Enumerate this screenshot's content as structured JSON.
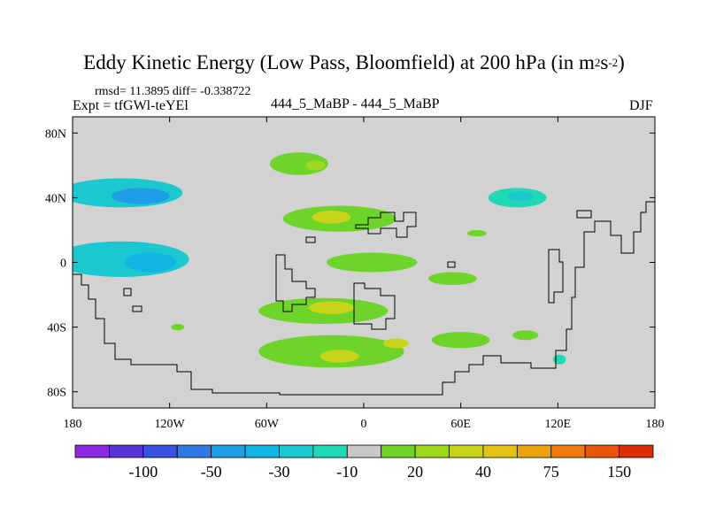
{
  "chart_data": {
    "type": "heatmap",
    "title": "Eddy Kinetic Energy (Low Pass, Bloomfield) at 200 hPa (in m",
    "title_unit_sup1": "2",
    "title_unit_mid": "s",
    "title_unit_sup2": "-2",
    "title_close": ")",
    "stats": "rmsd= 11.3895 diff= -0.338722",
    "expt": "Expt = tfGWl-teYEl",
    "center_label": "444_5_MaBP - 444_5_MaBP",
    "season": "DJF",
    "x_range": [
      -180,
      180
    ],
    "y_range": [
      -90,
      90
    ],
    "x_ticks": [
      {
        "v": -180,
        "label": "180"
      },
      {
        "v": -120,
        "label": "120W"
      },
      {
        "v": -60,
        "label": "60W"
      },
      {
        "v": 0,
        "label": "0"
      },
      {
        "v": 60,
        "label": "60E"
      },
      {
        "v": 120,
        "label": "120E"
      },
      {
        "v": 180,
        "label": "180"
      }
    ],
    "y_ticks": [
      {
        "v": 80,
        "label": "80N"
      },
      {
        "v": 40,
        "label": "40N"
      },
      {
        "v": 0,
        "label": "0"
      },
      {
        "v": -40,
        "label": "40S"
      },
      {
        "v": -80,
        "label": "80S"
      }
    ],
    "colorbar": {
      "colors": [
        "#8a2be2",
        "#5a32d8",
        "#3a52e2",
        "#2e7be6",
        "#1f9ee8",
        "#12b4e3",
        "#1cc8d0",
        "#20d8b4",
        "#c8c8c8",
        "#6ed42a",
        "#9ed81e",
        "#c8d41a",
        "#e2c214",
        "#eca40e",
        "#ee7a0c",
        "#e85408",
        "#dc2e04"
      ],
      "labels": [
        {
          "after_index": 1,
          "text": "-100"
        },
        {
          "after_index": 3,
          "text": "-50"
        },
        {
          "after_index": 5,
          "text": "-30"
        },
        {
          "after_index": 7,
          "text": "-10"
        },
        {
          "after_index": 9,
          "text": "20"
        },
        {
          "after_index": 11,
          "text": "40"
        },
        {
          "after_index": 13,
          "text": "75"
        },
        {
          "after_index": 15,
          "text": "150"
        }
      ]
    },
    "background_color": "#d2d2d2",
    "anomaly_regions": [
      {
        "name": "nh-pacific-neg",
        "lon": -150,
        "lat": 43,
        "rlon": 38,
        "rlat": 9,
        "level": -25
      },
      {
        "name": "nh-pacific-neg-core",
        "lon": -138,
        "lat": 41,
        "rlon": 18,
        "rlat": 5,
        "level": -40
      },
      {
        "name": "trop-pacific-neg",
        "lon": -150,
        "lat": 2,
        "rlon": 42,
        "rlat": 11,
        "level": -20
      },
      {
        "name": "trop-pacific-neg-core",
        "lon": -132,
        "lat": 0,
        "rlon": 16,
        "rlat": 6,
        "level": -35
      },
      {
        "name": "nh-europe-neg",
        "lon": 95,
        "lat": 40,
        "rlon": 18,
        "rlat": 6,
        "level": -15
      },
      {
        "name": "nh-europe-neg-core",
        "lon": 97,
        "lat": 41,
        "rlon": 8,
        "rlat": 3,
        "level": -28
      },
      {
        "name": "nh-atlantic-pos-north",
        "lon": -40,
        "lat": 61,
        "rlon": 18,
        "rlat": 7,
        "level": 15
      },
      {
        "name": "nh-atlantic-pos-north-core",
        "lon": -30,
        "lat": 60,
        "rlon": 6,
        "rlat": 3,
        "level": 28
      },
      {
        "name": "nh-atlantic-pos",
        "lon": -15,
        "lat": 27,
        "rlon": 35,
        "rlat": 8,
        "level": 18
      },
      {
        "name": "nh-atlantic-pos-core",
        "lon": -20,
        "lat": 28,
        "rlon": 12,
        "rlat": 4,
        "level": 35
      },
      {
        "name": "trop-atlantic-pos",
        "lon": 5,
        "lat": 0,
        "rlon": 28,
        "rlat": 6,
        "level": 12
      },
      {
        "name": "trop-indian-pos",
        "lon": 55,
        "lat": -10,
        "rlon": 15,
        "rlat": 4,
        "level": 12
      },
      {
        "name": "sh-atlantic-pos",
        "lon": -25,
        "lat": -30,
        "rlon": 40,
        "rlat": 8,
        "level": 18
      },
      {
        "name": "sh-atlantic-pos-core",
        "lon": -20,
        "lat": -28,
        "rlon": 14,
        "rlat": 4,
        "level": 35
      },
      {
        "name": "sh-southern-pos",
        "lon": -20,
        "lat": -55,
        "rlon": 45,
        "rlat": 10,
        "level": 18
      },
      {
        "name": "sh-southern-pos-core",
        "lon": -15,
        "lat": -58,
        "rlon": 12,
        "rlat": 4,
        "level": 32
      },
      {
        "name": "sh-southern-pos-core2",
        "lon": 20,
        "lat": -50,
        "rlon": 8,
        "rlat": 3,
        "level": 32
      },
      {
        "name": "sh-east-pos",
        "lon": 60,
        "lat": -48,
        "rlon": 18,
        "rlat": 5,
        "level": 12
      },
      {
        "name": "sh-indian-pos",
        "lon": 100,
        "lat": -45,
        "rlon": 8,
        "rlat": 3,
        "level": 12
      },
      {
        "name": "sh-indian-neg",
        "lon": 121,
        "lat": -60,
        "rlon": 4,
        "rlat": 3,
        "level": -15
      },
      {
        "name": "nh-pacific-east-pos",
        "lon": 70,
        "lat": 18,
        "rlon": 6,
        "rlat": 2,
        "level": 12
      },
      {
        "name": "nh-pacific-small-pos",
        "lon": -115,
        "lat": -40,
        "rlon": 4,
        "rlat": 2,
        "level": 12
      }
    ]
  }
}
